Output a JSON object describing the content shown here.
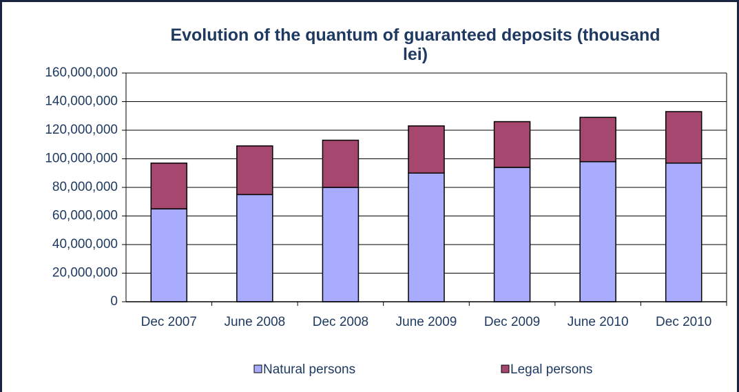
{
  "chart_data": {
    "type": "stacked_bar",
    "title": "Evolution of the quantum of guaranteed deposits (thousand lei)",
    "categories": [
      "Dec 2007",
      "June 2008",
      "Dec 2008",
      "June 2009",
      "Dec 2009",
      "June 2010",
      "Dec 2010"
    ],
    "series": [
      {
        "name": "Natural persons",
        "color": "#a9abff",
        "values": [
          65000000,
          75000000,
          80000000,
          90000000,
          94000000,
          98000000,
          97000000
        ]
      },
      {
        "name": "Legal persons",
        "color": "#a6476f",
        "values": [
          32000000,
          34000000,
          33000000,
          33000000,
          32000000,
          31000000,
          36000000
        ]
      }
    ],
    "ylim": [
      0,
      160000000
    ],
    "yticks": [
      0,
      {
        "value": 20000000,
        "label": "20,000,000"
      },
      {
        "value": 40000000,
        "label": "40,000,000"
      },
      {
        "value": 60000000,
        "label": "60,000,000"
      },
      {
        "value": 80000000,
        "label": "80,000,000"
      },
      {
        "value": 100000000,
        "label": "100,000,000"
      },
      {
        "value": 120000000,
        "label": "120,000,000"
      },
      {
        "value": 140000000,
        "label": "140,000,000"
      },
      {
        "value": 160000000,
        "label": "160,000,000"
      }
    ],
    "grid": true,
    "legend": "bottom"
  }
}
